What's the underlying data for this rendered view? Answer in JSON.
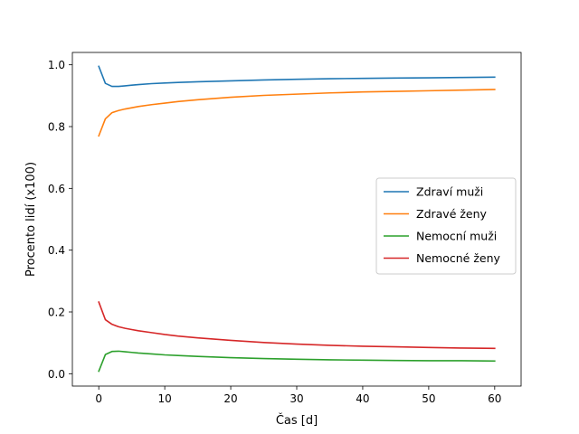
{
  "chart_data": {
    "type": "line",
    "title": "",
    "xlabel": "Čas [d]",
    "ylabel": "Procento lidí (x100)",
    "xlim": [
      -4,
      64
    ],
    "ylim": [
      -0.04,
      1.04
    ],
    "xticks": [
      0,
      10,
      20,
      30,
      40,
      50,
      60
    ],
    "yticks": [
      0.0,
      0.2,
      0.4,
      0.6,
      0.8,
      1.0
    ],
    "xtick_labels": [
      "0",
      "10",
      "20",
      "30",
      "40",
      "50",
      "60"
    ],
    "ytick_labels": [
      "0.0",
      "0.2",
      "0.4",
      "0.6",
      "0.8",
      "1.0"
    ],
    "grid": false,
    "legend_position": "center-right",
    "x": [
      0,
      1,
      2,
      3,
      4,
      5,
      6,
      8,
      10,
      12,
      15,
      20,
      25,
      30,
      35,
      40,
      45,
      50,
      55,
      60
    ],
    "series": [
      {
        "name": "Zdraví muži",
        "color": "#1f77b4",
        "values": [
          0.995,
          0.94,
          0.93,
          0.93,
          0.932,
          0.934,
          0.936,
          0.939,
          0.941,
          0.943,
          0.945,
          0.948,
          0.951,
          0.953,
          0.955,
          0.956,
          0.957,
          0.958,
          0.959,
          0.96
        ]
      },
      {
        "name": "Zdravé ženy",
        "color": "#ff7f0e",
        "values": [
          0.77,
          0.825,
          0.845,
          0.852,
          0.857,
          0.861,
          0.865,
          0.871,
          0.876,
          0.881,
          0.887,
          0.895,
          0.901,
          0.905,
          0.909,
          0.912,
          0.914,
          0.916,
          0.918,
          0.92
        ]
      },
      {
        "name": "Nemocní muži",
        "color": "#2ca02c",
        "values": [
          0.008,
          0.062,
          0.072,
          0.073,
          0.071,
          0.069,
          0.067,
          0.064,
          0.061,
          0.059,
          0.056,
          0.052,
          0.049,
          0.047,
          0.045,
          0.044,
          0.043,
          0.042,
          0.042,
          0.041
        ]
      },
      {
        "name": "Nemocné ženy",
        "color": "#d62728",
        "values": [
          0.232,
          0.175,
          0.16,
          0.152,
          0.147,
          0.143,
          0.139,
          0.133,
          0.127,
          0.122,
          0.116,
          0.108,
          0.101,
          0.096,
          0.092,
          0.089,
          0.087,
          0.085,
          0.083,
          0.082
        ]
      }
    ]
  }
}
